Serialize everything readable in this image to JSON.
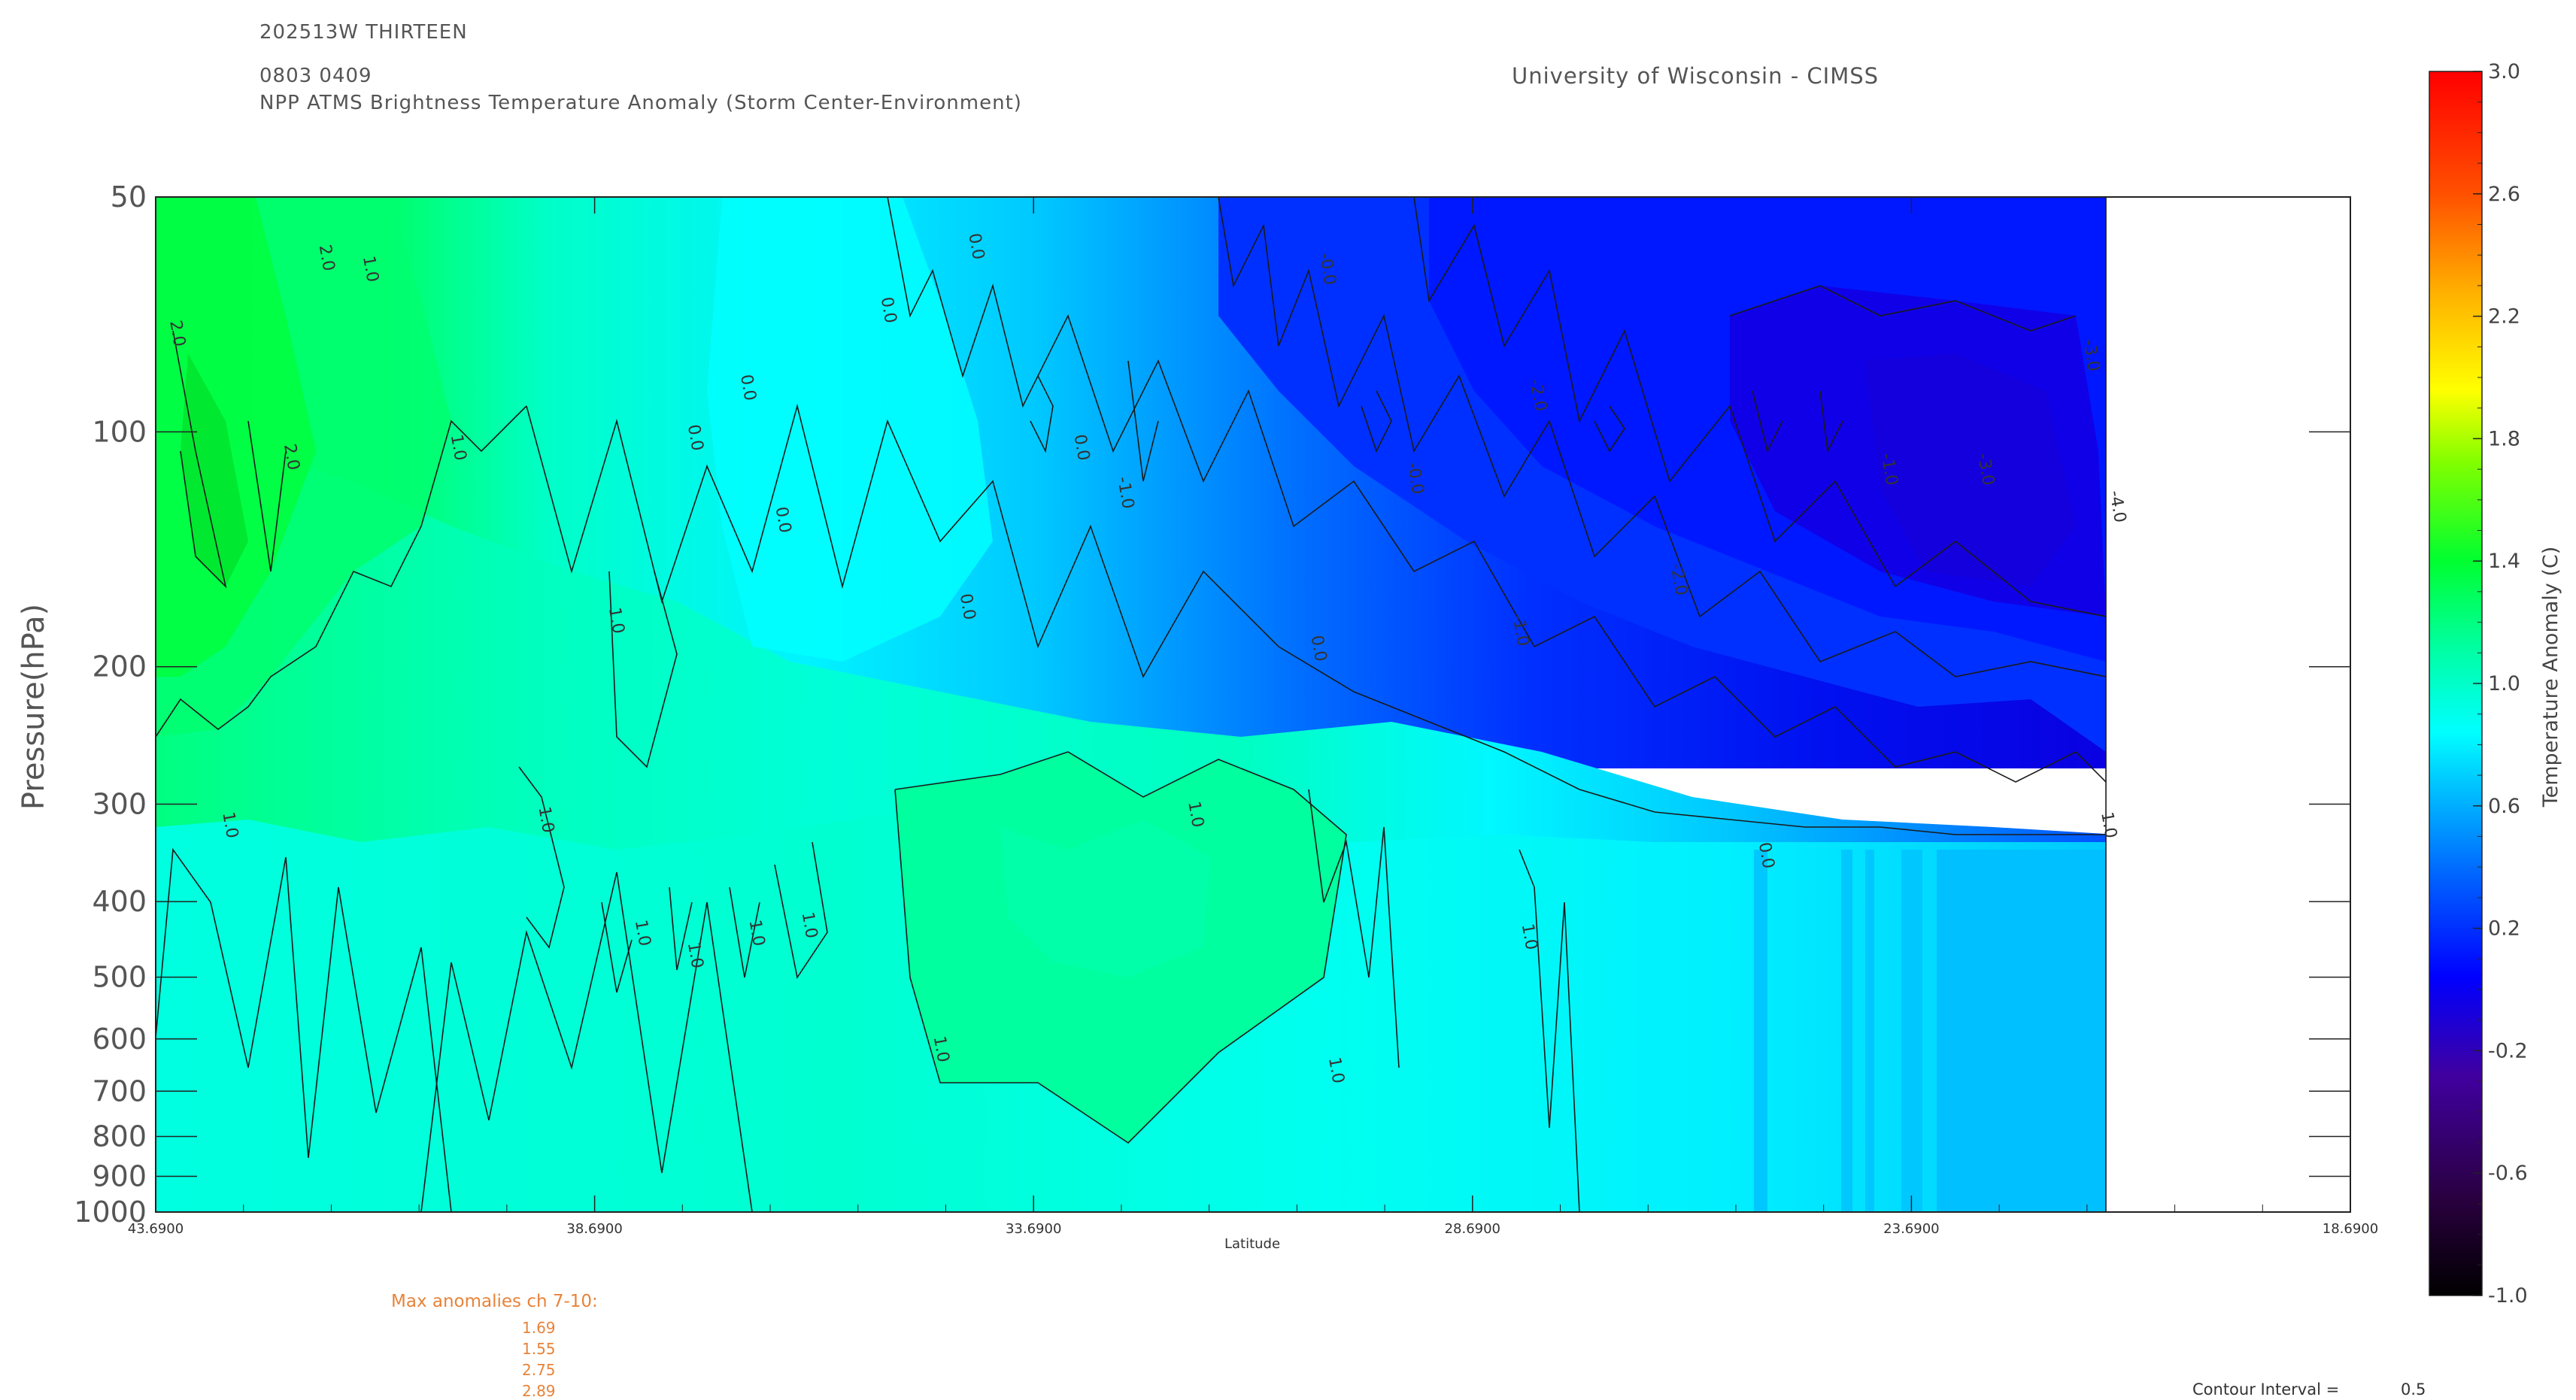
{
  "header": {
    "storm_id": "202513W THIRTEEN",
    "datetime": "0803 0409",
    "product": "NPP ATMS Brightness Temperature Anomaly (Storm Center-Environment)",
    "institution": "University of Wisconsin - CIMSS"
  },
  "max_anomalies": {
    "title": "Max anomalies ch 7-10:",
    "values": [
      "1.69",
      "1.55",
      "2.75",
      "2.89"
    ]
  },
  "contour_interval": {
    "label": "Contour Interval =",
    "value": "0.5"
  },
  "chart_data": {
    "type": "heatmap",
    "xlabel": "Latitude",
    "ylabel": "Pressure(hPa)",
    "x_ticks": [
      "43.6900",
      "38.6900",
      "33.6900",
      "28.6900",
      "23.6900",
      "18.6900"
    ],
    "x_range": [
      43.69,
      18.69
    ],
    "data_end_latitude": 21.4,
    "y_ticks": [
      50,
      100,
      200,
      300,
      400,
      500,
      600,
      700,
      800,
      900,
      1000
    ],
    "y_scale": "log",
    "y_range": [
      50,
      1000
    ],
    "colorbar": {
      "label": "Temperature Anomaly (C)",
      "range": [
        -1.0,
        3.0
      ],
      "tick_labels": [
        "3.0",
        "2.6",
        "2.2",
        "1.8",
        "1.4",
        "1.0",
        "0.6",
        "0.2",
        "-0.2",
        "-0.6",
        "-1.0"
      ]
    },
    "contour_labels": [
      {
        "text": "2.0",
        "lat": 43.5,
        "p": 75
      },
      {
        "text": "2.0",
        "lat": 41.8,
        "p": 60
      },
      {
        "text": "1.0",
        "lat": 41.3,
        "p": 62
      },
      {
        "text": "2.0",
        "lat": 42.2,
        "p": 108
      },
      {
        "text": "1.0",
        "lat": 40.3,
        "p": 105
      },
      {
        "text": "1.0",
        "lat": 38.5,
        "p": 175
      },
      {
        "text": "0.0",
        "lat": 37.6,
        "p": 102
      },
      {
        "text": "0.0",
        "lat": 37.0,
        "p": 88
      },
      {
        "text": "0.0",
        "lat": 36.6,
        "p": 130
      },
      {
        "text": "0.0",
        "lat": 35.4,
        "p": 70
      },
      {
        "text": "0.0",
        "lat": 34.4,
        "p": 58
      },
      {
        "text": "0.0",
        "lat": 34.5,
        "p": 168
      },
      {
        "text": "0.0",
        "lat": 33.2,
        "p": 105
      },
      {
        "text": "-1.0",
        "lat": 32.7,
        "p": 120
      },
      {
        "text": "0.0",
        "lat": 30.5,
        "p": 190
      },
      {
        "text": "-0.0",
        "lat": 30.4,
        "p": 62
      },
      {
        "text": "-0.0",
        "lat": 29.4,
        "p": 115
      },
      {
        "text": "-2.0",
        "lat": 28.0,
        "p": 90
      },
      {
        "text": "-1.0",
        "lat": 28.2,
        "p": 180
      },
      {
        "text": "-2.0",
        "lat": 26.4,
        "p": 155
      },
      {
        "text": "-1.0",
        "lat": 24.0,
        "p": 112
      },
      {
        "text": "-3.0",
        "lat": 22.9,
        "p": 112
      },
      {
        "text": "-3.0",
        "lat": 21.7,
        "p": 80
      },
      {
        "text": "-4.0",
        "lat": 21.4,
        "p": 125
      },
      {
        "text": "1.0",
        "lat": 42.9,
        "p": 320
      },
      {
        "text": "1.0",
        "lat": 39.3,
        "p": 315
      },
      {
        "text": "1.0",
        "lat": 38.2,
        "p": 440
      },
      {
        "text": "1.0",
        "lat": 37.6,
        "p": 470
      },
      {
        "text": "1.0",
        "lat": 36.9,
        "p": 440
      },
      {
        "text": "1.0",
        "lat": 36.3,
        "p": 430
      },
      {
        "text": "1.0",
        "lat": 31.9,
        "p": 310
      },
      {
        "text": "1.0",
        "lat": 34.8,
        "p": 620
      },
      {
        "text": "1.0",
        "lat": 30.3,
        "p": 660
      },
      {
        "text": "1.0",
        "lat": 28.1,
        "p": 445
      },
      {
        "text": "0.0",
        "lat": 25.4,
        "p": 350
      },
      {
        "text": "1.0",
        "lat": 21.5,
        "p": 320
      }
    ]
  }
}
